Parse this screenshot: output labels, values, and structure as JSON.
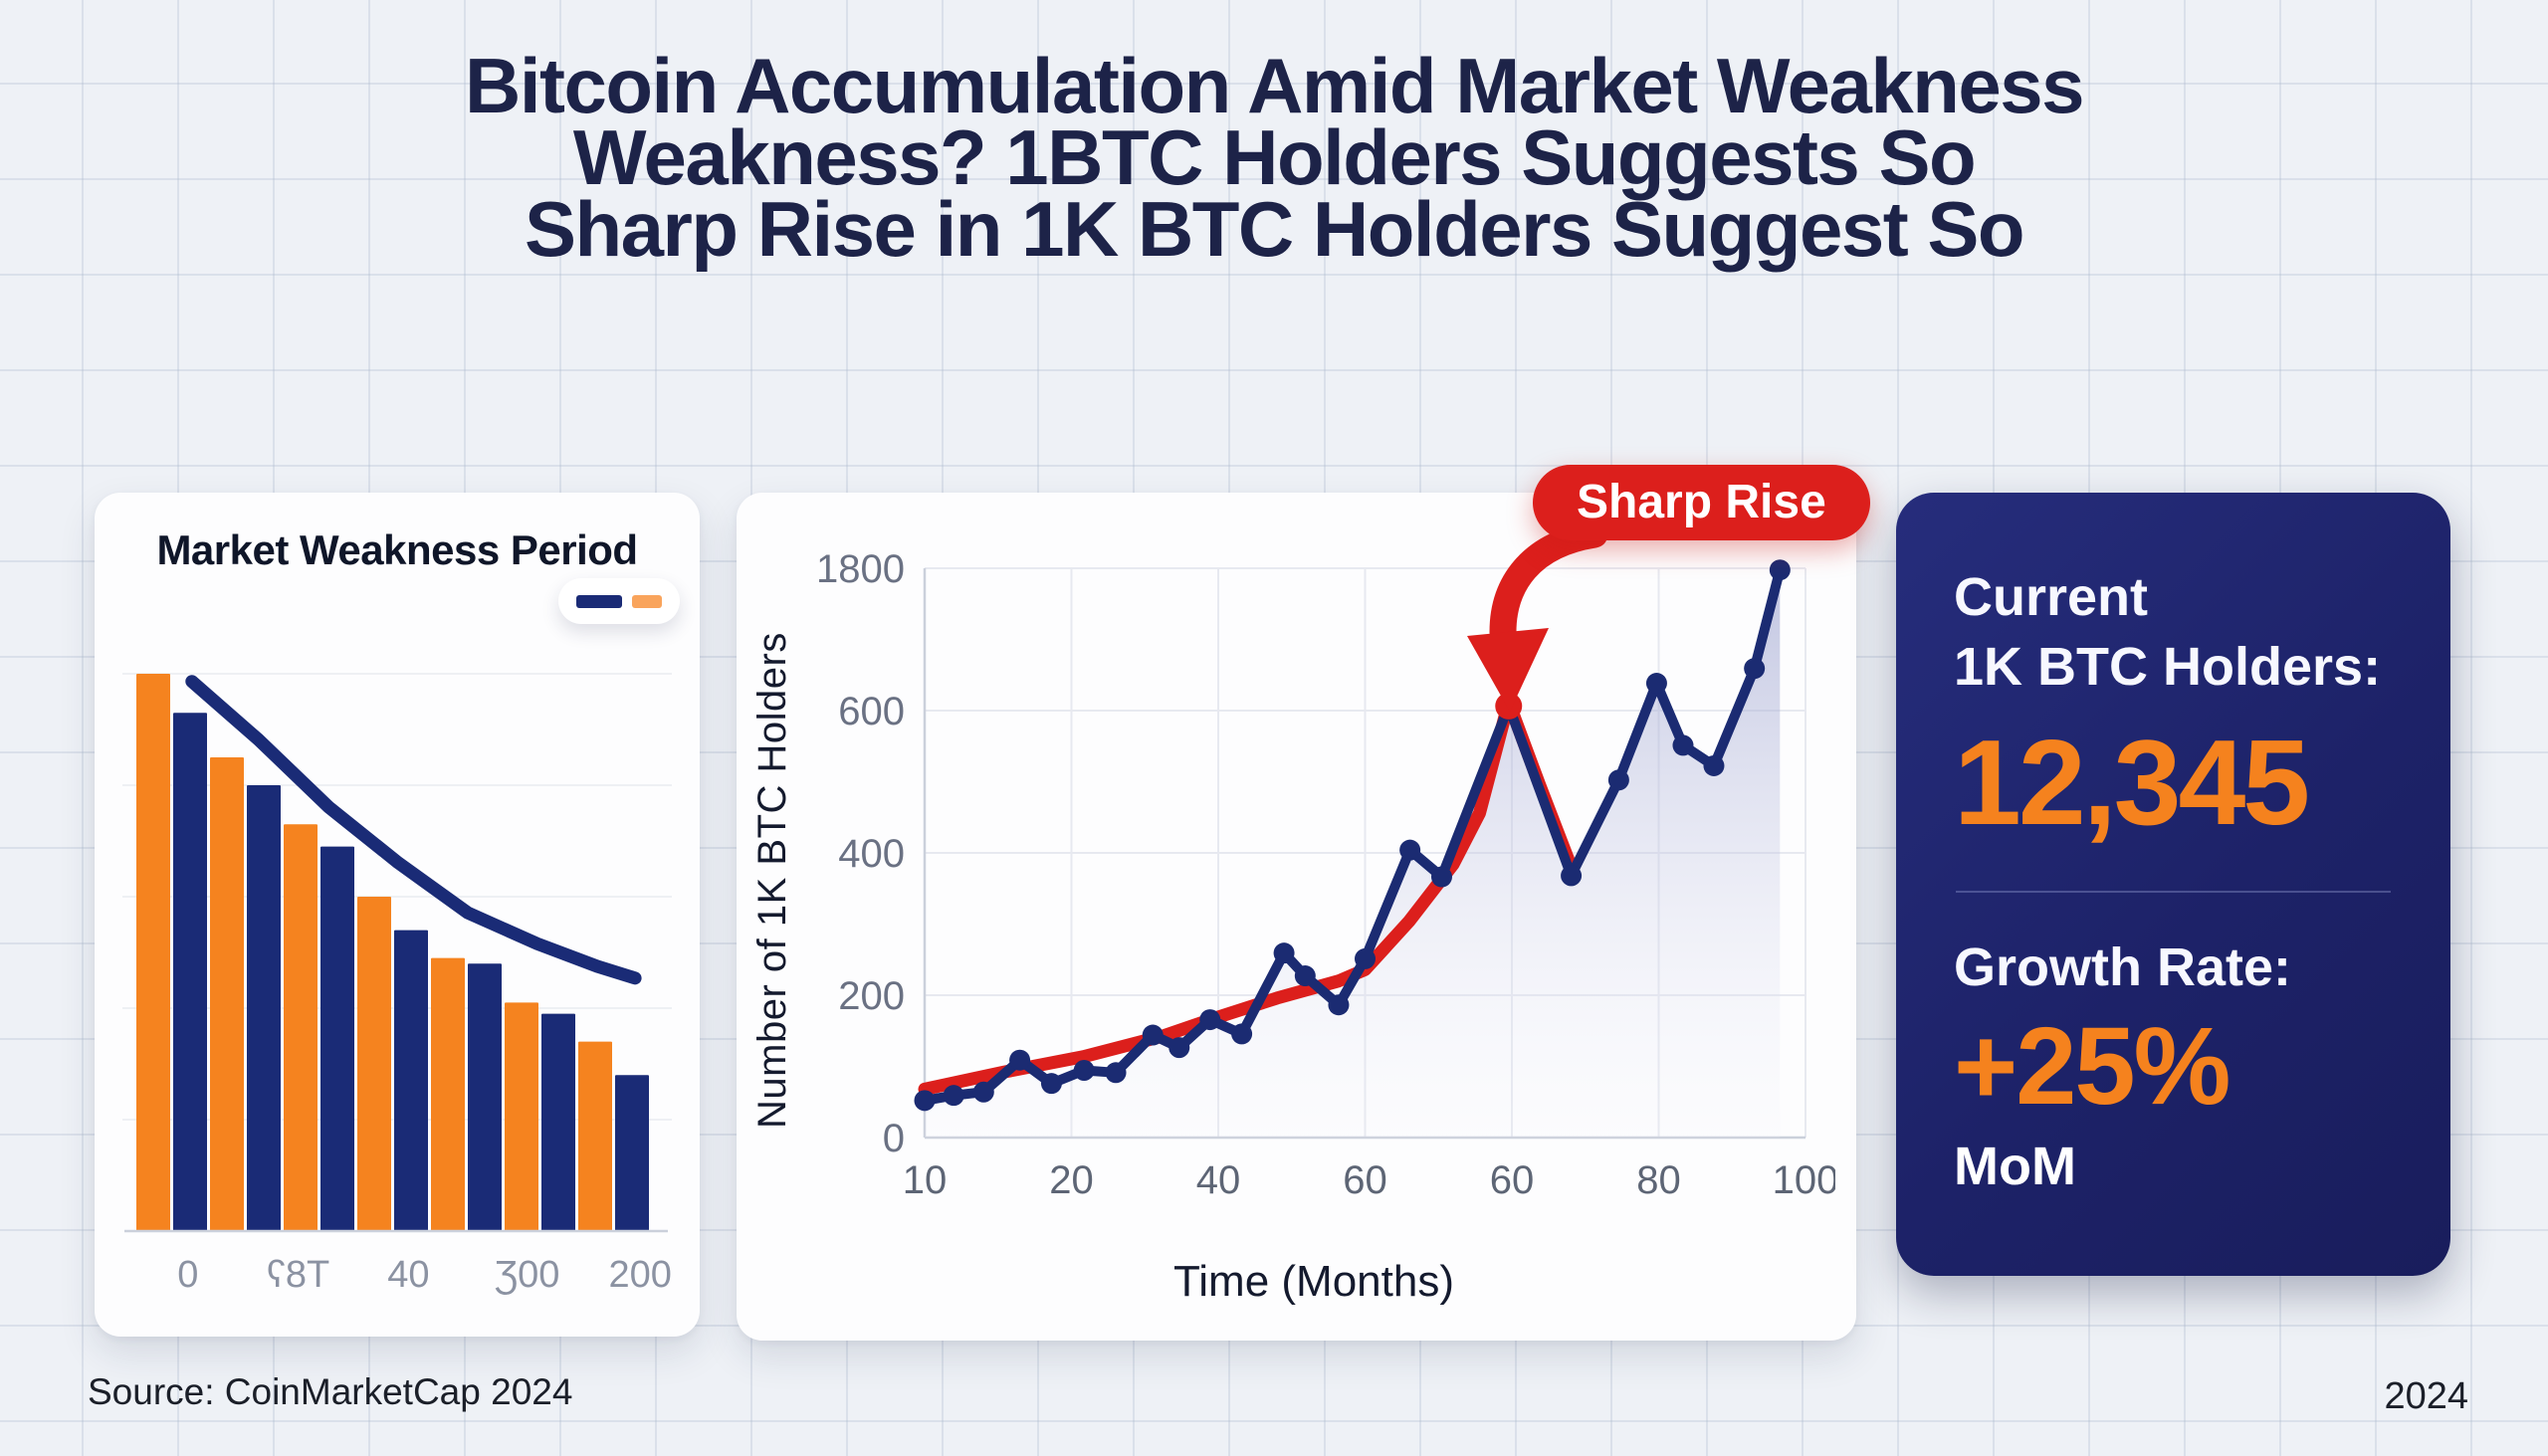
{
  "title": {
    "lines": [
      "Bitcoin Accumulation Amid Market Weakness",
      "Weakness? 1BTC Holders Suggests So",
      "Sharp Rise in 1K BTC Holders Suggest So"
    ]
  },
  "colors": {
    "navy": "#1A2B76",
    "line_navy": "#1B2B72",
    "orange": "#F5831F",
    "legend_orange": "#F9A45C",
    "red": "#DC1F1C",
    "tick_gray": "#6A7183",
    "x_tick_gray": "#5D6575",
    "bar_x_tick_gray": "#8B92A2",
    "grid": "#E7E9F0",
    "axis": "#CBD0DB",
    "stat_orange": "#F5821E"
  },
  "annotation": {
    "label": "Sharp Rise"
  },
  "stats_card": {
    "current_label_line1": "Current",
    "current_label_line2": "1K BTC Holders:",
    "current_value": "12,345",
    "growth_label": "Growth Rate:",
    "growth_value": "+25%",
    "growth_unit": "MoM"
  },
  "footer": {
    "source": "Source: CoinMarketCap 2024",
    "year": "2024"
  },
  "chart_data": [
    {
      "type": "bar",
      "title": "Market Weakness Period",
      "x_tick_labels": [
        "0",
        "ʕ8T",
        "40",
        "Ʒ00",
        "200"
      ],
      "x_tick_pos_pct": [
        13,
        32.5,
        52,
        73,
        93
      ],
      "legend": [
        "navy-dash",
        "orange-dash"
      ],
      "grid": "faint horizontal lines, no y labels",
      "series": [
        {
          "name": "orange",
          "values_pct_of_max": [
            100,
            85,
            73,
            60,
            49,
            41,
            34
          ]
        },
        {
          "name": "navy",
          "values_pct_of_max": [
            93,
            80,
            69,
            54,
            48,
            39,
            28
          ]
        }
      ],
      "trend_line": {
        "name": "decline-trend",
        "x_pct": [
          13.7,
          25.5,
          37.9,
          50.2,
          62.5,
          74.8,
          85.4,
          92.1
        ],
        "y_pct": [
          10.1,
          18.6,
          28.4,
          36.5,
          43.8,
          48.3,
          51.6,
          53.3
        ]
      }
    },
    {
      "type": "line",
      "title": "",
      "xlabel": "Time (Months)",
      "ylabel": "Number of 1K BTC Holders",
      "y_tick_labels": [
        "1800",
        "600",
        "400",
        "200",
        "0"
      ],
      "x_tick_labels": [
        "10",
        "20",
        "40",
        "60",
        "60",
        "80",
        "100"
      ],
      "axis_note": "y axis nonlinear: evenly spaced gridlines 0,200,400,600,1800",
      "legend_position": "none",
      "annotation": "Sharp Rise (red arrow pointing at peak)",
      "peak_index": 17,
      "series": [
        {
          "name": "1K BTC Holders",
          "style": "line+markers+area",
          "x_pct": [
            0,
            3.3,
            6.7,
            10.8,
            14.4,
            18.1,
            21.7,
            25.9,
            28.9,
            32.4,
            36.0,
            40.8,
            43.2,
            47.0,
            50.0,
            55.1,
            58.7,
            66.3,
            73.4,
            78.8,
            83.1,
            86.1,
            89.6,
            94.2,
            97.1
          ],
          "y_pct": [
            6.5,
            7.4,
            8.0,
            13.6,
            9.5,
            11.8,
            11.4,
            18.0,
            15.8,
            20.7,
            18.2,
            32.4,
            28.4,
            23.3,
            31.4,
            50.5,
            45.8,
            75.8,
            46.0,
            62.8,
            79.8,
            68.9,
            65.3,
            82.4,
            99.7
          ],
          "approx_values": [
            52,
            59,
            64,
            109,
            76,
            94,
            91,
            144,
            126,
            166,
            146,
            259,
            227,
            186,
            251,
            404,
            366,
            606,
            368,
            502,
            638,
            551,
            522,
            660,
            1786
          ]
        },
        {
          "name": "sharp-rise-trend",
          "style": "line",
          "x_pct": [
            0,
            9,
            18,
            27,
            33,
            40,
            47,
            50,
            55,
            60,
            63,
            66.3,
            69.8,
            73.4
          ],
          "y_pct": [
            8.5,
            11.5,
            14.2,
            17.8,
            21.0,
            24.5,
            27.5,
            29.5,
            38,
            48,
            57,
            76.5,
            62,
            47.5
          ]
        }
      ]
    }
  ]
}
